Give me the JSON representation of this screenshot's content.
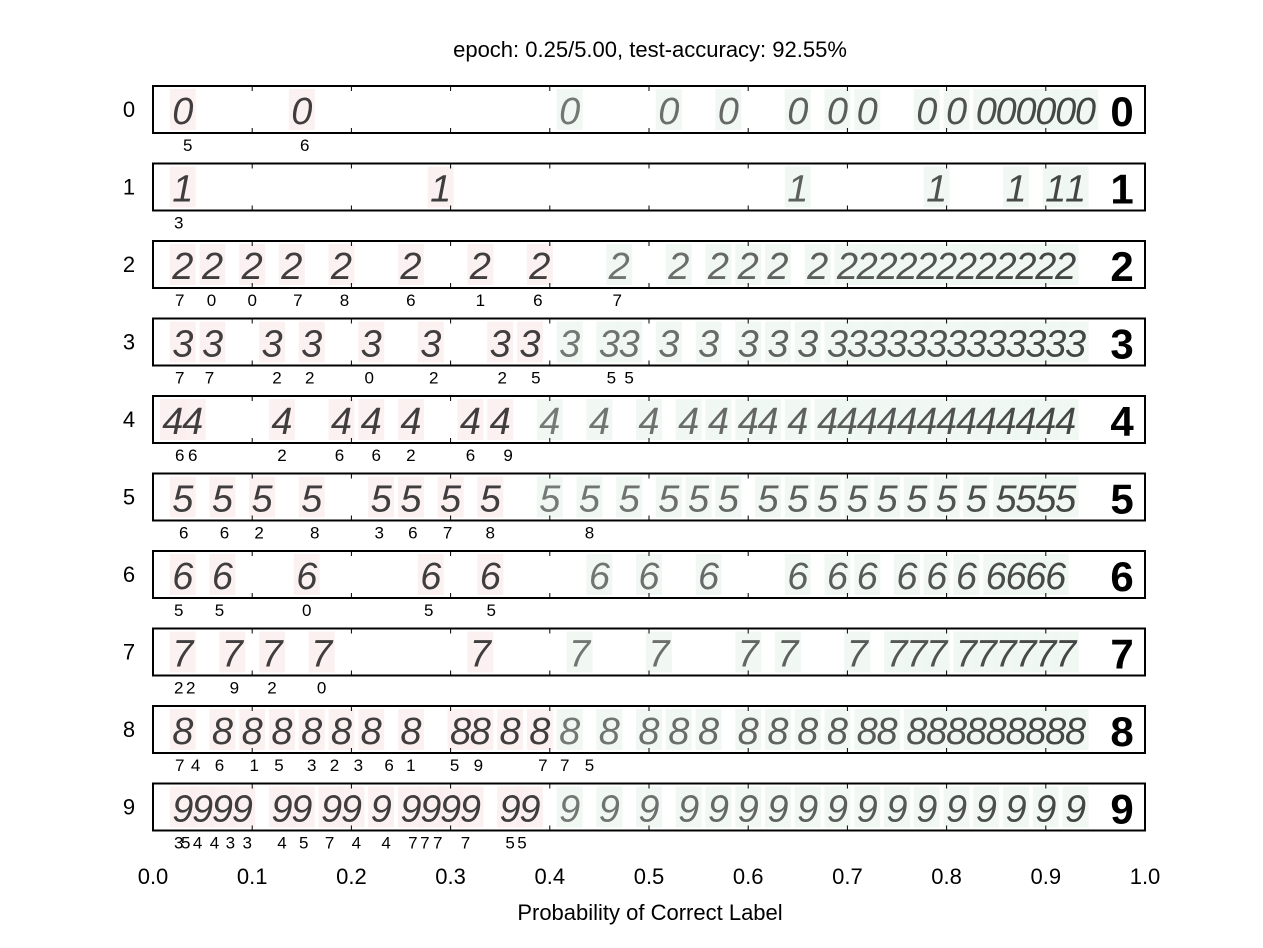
{
  "chart_data": {
    "type": "scatter",
    "title": "epoch: 0.25/5.00, test-accuracy: 92.55%",
    "xlabel": "Probability of Correct Label",
    "ylabel": "",
    "xlim": [
      0.0,
      1.0
    ],
    "x_ticks": [
      "0.0",
      "0.1",
      "0.2",
      "0.3",
      "0.4",
      "0.5",
      "0.6",
      "0.7",
      "0.8",
      "0.9",
      "1.0"
    ],
    "correct_threshold": 0.4,
    "colors": {
      "incorrect": "#d98a8a",
      "correct": "#6fae86",
      "strong": "#0d6b32",
      "frame": "#000000"
    },
    "rows": [
      {
        "label": "0",
        "digits": [
          0.03,
          0.15,
          0.42,
          0.52,
          0.58,
          0.65,
          0.69,
          0.72,
          0.78,
          0.81,
          0.84,
          0.86,
          0.88,
          0.9,
          0.92,
          0.94
        ],
        "misclassified": [
          {
            "x": 0.035,
            "pred": "5"
          },
          {
            "x": 0.153,
            "pred": "6"
          }
        ]
      },
      {
        "label": "1",
        "digits": [
          0.03,
          0.29,
          0.65,
          0.79,
          0.87,
          0.91,
          0.93
        ],
        "misclassified": [
          {
            "x": 0.026,
            "pred": "3"
          }
        ]
      },
      {
        "label": "2",
        "digits": [
          0.03,
          0.06,
          0.1,
          0.14,
          0.19,
          0.26,
          0.33,
          0.39,
          0.47,
          0.53,
          0.57,
          0.6,
          0.63,
          0.67,
          0.7,
          0.72,
          0.74,
          0.76,
          0.78,
          0.8,
          0.82,
          0.84,
          0.86,
          0.88,
          0.9,
          0.92
        ],
        "misclassified": [
          {
            "x": 0.027,
            "pred": "7"
          },
          {
            "x": 0.059,
            "pred": "0"
          },
          {
            "x": 0.1,
            "pred": "0"
          },
          {
            "x": 0.146,
            "pred": "7"
          },
          {
            "x": 0.193,
            "pred": "8"
          },
          {
            "x": 0.26,
            "pred": "6"
          },
          {
            "x": 0.33,
            "pred": "1"
          },
          {
            "x": 0.388,
            "pred": "6"
          },
          {
            "x": 0.468,
            "pred": "7"
          }
        ]
      },
      {
        "label": "3",
        "digits": [
          0.03,
          0.06,
          0.12,
          0.16,
          0.22,
          0.28,
          0.35,
          0.38,
          0.42,
          0.46,
          0.48,
          0.52,
          0.56,
          0.6,
          0.63,
          0.66,
          0.69,
          0.71,
          0.73,
          0.75,
          0.77,
          0.79,
          0.81,
          0.83,
          0.85,
          0.87,
          0.89,
          0.91,
          0.93
        ],
        "misclassified": [
          {
            "x": 0.027,
            "pred": "7"
          },
          {
            "x": 0.057,
            "pred": "7"
          },
          {
            "x": 0.125,
            "pred": "2"
          },
          {
            "x": 0.158,
            "pred": "2"
          },
          {
            "x": 0.218,
            "pred": "0"
          },
          {
            "x": 0.283,
            "pred": "2"
          },
          {
            "x": 0.352,
            "pred": "2"
          },
          {
            "x": 0.386,
            "pred": "5"
          },
          {
            "x": 0.462,
            "pred": "5"
          },
          {
            "x": 0.48,
            "pred": "5"
          }
        ]
      },
      {
        "label": "4",
        "digits": [
          0.02,
          0.04,
          0.13,
          0.19,
          0.22,
          0.26,
          0.32,
          0.35,
          0.4,
          0.45,
          0.5,
          0.54,
          0.57,
          0.6,
          0.62,
          0.65,
          0.68,
          0.7,
          0.72,
          0.74,
          0.76,
          0.78,
          0.8,
          0.82,
          0.84,
          0.86,
          0.88,
          0.9,
          0.92
        ],
        "misclassified": [
          {
            "x": 0.027,
            "pred": "6"
          },
          {
            "x": 0.04,
            "pred": "6"
          },
          {
            "x": 0.13,
            "pred": "2"
          },
          {
            "x": 0.188,
            "pred": "6"
          },
          {
            "x": 0.225,
            "pred": "6"
          },
          {
            "x": 0.26,
            "pred": "2"
          },
          {
            "x": 0.32,
            "pred": "6"
          },
          {
            "x": 0.358,
            "pred": "9"
          }
        ]
      },
      {
        "label": "5",
        "digits": [
          0.03,
          0.07,
          0.11,
          0.16,
          0.23,
          0.26,
          0.3,
          0.34,
          0.4,
          0.44,
          0.48,
          0.52,
          0.55,
          0.58,
          0.62,
          0.65,
          0.68,
          0.71,
          0.74,
          0.77,
          0.8,
          0.83,
          0.86,
          0.88,
          0.9,
          0.92
        ],
        "misclassified": [
          {
            "x": 0.031,
            "pred": "6"
          },
          {
            "x": 0.072,
            "pred": "6"
          },
          {
            "x": 0.107,
            "pred": "2"
          },
          {
            "x": 0.163,
            "pred": "8"
          },
          {
            "x": 0.228,
            "pred": "3"
          },
          {
            "x": 0.262,
            "pred": "6"
          },
          {
            "x": 0.297,
            "pred": "7"
          },
          {
            "x": 0.34,
            "pred": "8"
          },
          {
            "x": 0.44,
            "pred": "8"
          }
        ]
      },
      {
        "label": "6",
        "digits": [
          0.03,
          0.07,
          0.155,
          0.28,
          0.34,
          0.45,
          0.5,
          0.56,
          0.65,
          0.69,
          0.72,
          0.76,
          0.79,
          0.82,
          0.85,
          0.87,
          0.89,
          0.91
        ],
        "misclassified": [
          {
            "x": 0.026,
            "pred": "5"
          },
          {
            "x": 0.067,
            "pred": "5"
          },
          {
            "x": 0.155,
            "pred": "0"
          },
          {
            "x": 0.278,
            "pred": "5"
          },
          {
            "x": 0.341,
            "pred": "5"
          }
        ]
      },
      {
        "label": "7",
        "digits": [
          0.03,
          0.08,
          0.12,
          0.17,
          0.33,
          0.43,
          0.51,
          0.6,
          0.64,
          0.71,
          0.75,
          0.77,
          0.79,
          0.82,
          0.84,
          0.86,
          0.88,
          0.9,
          0.92
        ],
        "misclassified": [
          {
            "x": 0.026,
            "pred": "2"
          },
          {
            "x": 0.038,
            "pred": "2"
          },
          {
            "x": 0.082,
            "pred": "9"
          },
          {
            "x": 0.12,
            "pred": "2"
          },
          {
            "x": 0.17,
            "pred": "0"
          }
        ]
      },
      {
        "label": "8",
        "digits": [
          0.03,
          0.07,
          0.1,
          0.13,
          0.16,
          0.19,
          0.22,
          0.26,
          0.31,
          0.33,
          0.36,
          0.39,
          0.42,
          0.46,
          0.5,
          0.53,
          0.56,
          0.6,
          0.63,
          0.66,
          0.69,
          0.72,
          0.74,
          0.77,
          0.79,
          0.81,
          0.83,
          0.85,
          0.87,
          0.89,
          0.91,
          0.93
        ],
        "misclassified": [
          {
            "x": 0.027,
            "pred": "7"
          },
          {
            "x": 0.043,
            "pred": "4"
          },
          {
            "x": 0.067,
            "pred": "6"
          },
          {
            "x": 0.102,
            "pred": "1"
          },
          {
            "x": 0.127,
            "pred": "5"
          },
          {
            "x": 0.16,
            "pred": "3"
          },
          {
            "x": 0.183,
            "pred": "2"
          },
          {
            "x": 0.207,
            "pred": "3"
          },
          {
            "x": 0.238,
            "pred": "6"
          },
          {
            "x": 0.26,
            "pred": "1"
          },
          {
            "x": 0.304,
            "pred": "5"
          },
          {
            "x": 0.328,
            "pred": "9"
          },
          {
            "x": 0.393,
            "pred": "7"
          },
          {
            "x": 0.415,
            "pred": "7"
          },
          {
            "x": 0.44,
            "pred": "5"
          }
        ]
      },
      {
        "label": "9",
        "digits": [
          0.03,
          0.05,
          0.07,
          0.09,
          0.13,
          0.15,
          0.18,
          0.2,
          0.23,
          0.26,
          0.28,
          0.3,
          0.32,
          0.36,
          0.38,
          0.42,
          0.46,
          0.5,
          0.54,
          0.57,
          0.6,
          0.63,
          0.66,
          0.69,
          0.72,
          0.75,
          0.78,
          0.81,
          0.84,
          0.87,
          0.9,
          0.93
        ],
        "misclassified": [
          {
            "x": 0.026,
            "pred": "3"
          },
          {
            "x": 0.033,
            "pred": "5"
          },
          {
            "x": 0.045,
            "pred": "4"
          },
          {
            "x": 0.062,
            "pred": "4"
          },
          {
            "x": 0.078,
            "pred": "3"
          },
          {
            "x": 0.095,
            "pred": "3"
          },
          {
            "x": 0.13,
            "pred": "4"
          },
          {
            "x": 0.152,
            "pred": "5"
          },
          {
            "x": 0.178,
            "pred": "7"
          },
          {
            "x": 0.205,
            "pred": "4"
          },
          {
            "x": 0.235,
            "pred": "4"
          },
          {
            "x": 0.262,
            "pred": "7"
          },
          {
            "x": 0.274,
            "pred": "7"
          },
          {
            "x": 0.287,
            "pred": "7"
          },
          {
            "x": 0.315,
            "pred": "7"
          },
          {
            "x": 0.36,
            "pred": "5"
          },
          {
            "x": 0.372,
            "pred": "5"
          }
        ]
      }
    ],
    "grid": false,
    "legend": "none"
  }
}
